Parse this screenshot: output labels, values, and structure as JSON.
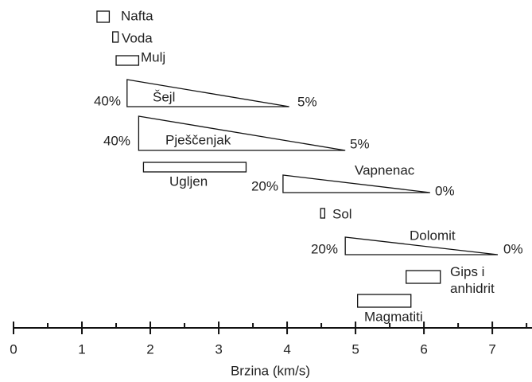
{
  "chart_data": {
    "type": "range",
    "x_label": "Brzina (km/s)",
    "xlim": [
      0,
      7.58
    ],
    "xticks": [
      0,
      1,
      2,
      3,
      4,
      5,
      6,
      7
    ],
    "minor_xticks": [
      0.5,
      1.5,
      2.5,
      3.5,
      4.5,
      5.5,
      6.5,
      7.5
    ],
    "color": "#111111",
    "items": [
      {
        "name": "Nafta",
        "shape": "box",
        "range": [
          1.22,
          1.4
        ]
      },
      {
        "name": "Voda",
        "shape": "box",
        "range": [
          1.45,
          1.53
        ]
      },
      {
        "name": "Mulj",
        "shape": "box",
        "range": [
          1.5,
          1.83
        ]
      },
      {
        "name": "Šejl",
        "shape": "wedge",
        "range": [
          1.66,
          4.03
        ],
        "porosity": [
          40,
          5
        ],
        "porosity_labels": [
          "40%",
          "5%"
        ]
      },
      {
        "name": "Pješčenjak",
        "shape": "wedge",
        "range": [
          1.83,
          4.85
        ],
        "porosity": [
          40,
          5
        ],
        "porosity_labels": [
          "40%",
          "5%"
        ]
      },
      {
        "name": "Ugljen",
        "shape": "box",
        "range": [
          1.9,
          3.4
        ]
      },
      {
        "name": "Vapnenac",
        "shape": "wedge",
        "range": [
          3.94,
          6.09
        ],
        "porosity": [
          20,
          0
        ],
        "porosity_labels": [
          "20%",
          "0%"
        ]
      },
      {
        "name": "Sol",
        "shape": "box",
        "range": [
          4.49,
          4.55
        ]
      },
      {
        "name": "Dolomit",
        "shape": "wedge",
        "range": [
          4.85,
          7.08
        ],
        "porosity": [
          20,
          0
        ],
        "porosity_labels": [
          "20%",
          "0%"
        ]
      },
      {
        "name": "Gips i\nanhidrit",
        "shape": "box",
        "range": [
          5.74,
          6.24
        ]
      },
      {
        "name": "Magmatiti",
        "shape": "box",
        "range": [
          5.03,
          5.81
        ]
      }
    ]
  }
}
